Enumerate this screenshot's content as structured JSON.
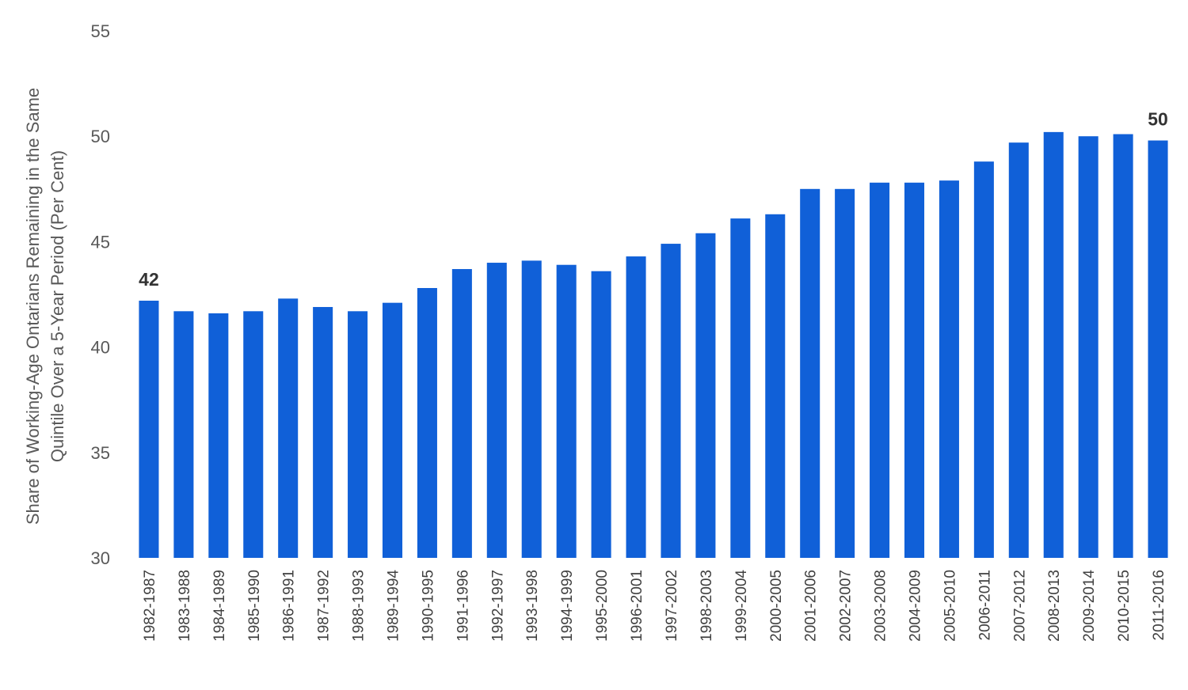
{
  "chart_data": {
    "type": "bar",
    "ylabel_lines": [
      "Share of Working-Age Ontarians Remaining in the Same",
      "Quintile Over a 5-Year Period (Per Cent)"
    ],
    "ylim": [
      30,
      55
    ],
    "yticks": [
      "55",
      "50",
      "45",
      "40",
      "35",
      "30"
    ],
    "grid": false,
    "bar_color": "#1060D8",
    "categories": [
      "1982-1987",
      "1983-1988",
      "1984-1989",
      "1985-1990",
      "1986-1991",
      "1987-1992",
      "1988-1993",
      "1989-1994",
      "1990-1995",
      "1991-1996",
      "1992-1997",
      "1993-1998",
      "1994-1999",
      "1995-2000",
      "1996-2001",
      "1997-2002",
      "1998-2003",
      "1999-2004",
      "2000-2005",
      "2001-2006",
      "2002-2007",
      "2003-2008",
      "2004-2009",
      "2005-2010",
      "2006-2011",
      "2007-2012",
      "2008-2013",
      "2009-2014",
      "2010-2015",
      "2011-2016"
    ],
    "values": [
      42.2,
      41.7,
      41.6,
      41.7,
      42.3,
      41.9,
      41.7,
      42.1,
      42.8,
      43.7,
      44.0,
      44.1,
      43.9,
      43.6,
      44.3,
      44.9,
      45.4,
      46.1,
      46.3,
      47.5,
      47.5,
      47.8,
      47.8,
      47.9,
      48.8,
      49.7,
      50.2,
      50.0,
      50.1,
      49.8
    ],
    "data_labels": [
      {
        "index": 0,
        "text": "42"
      },
      {
        "index": 29,
        "text": "50"
      }
    ]
  }
}
